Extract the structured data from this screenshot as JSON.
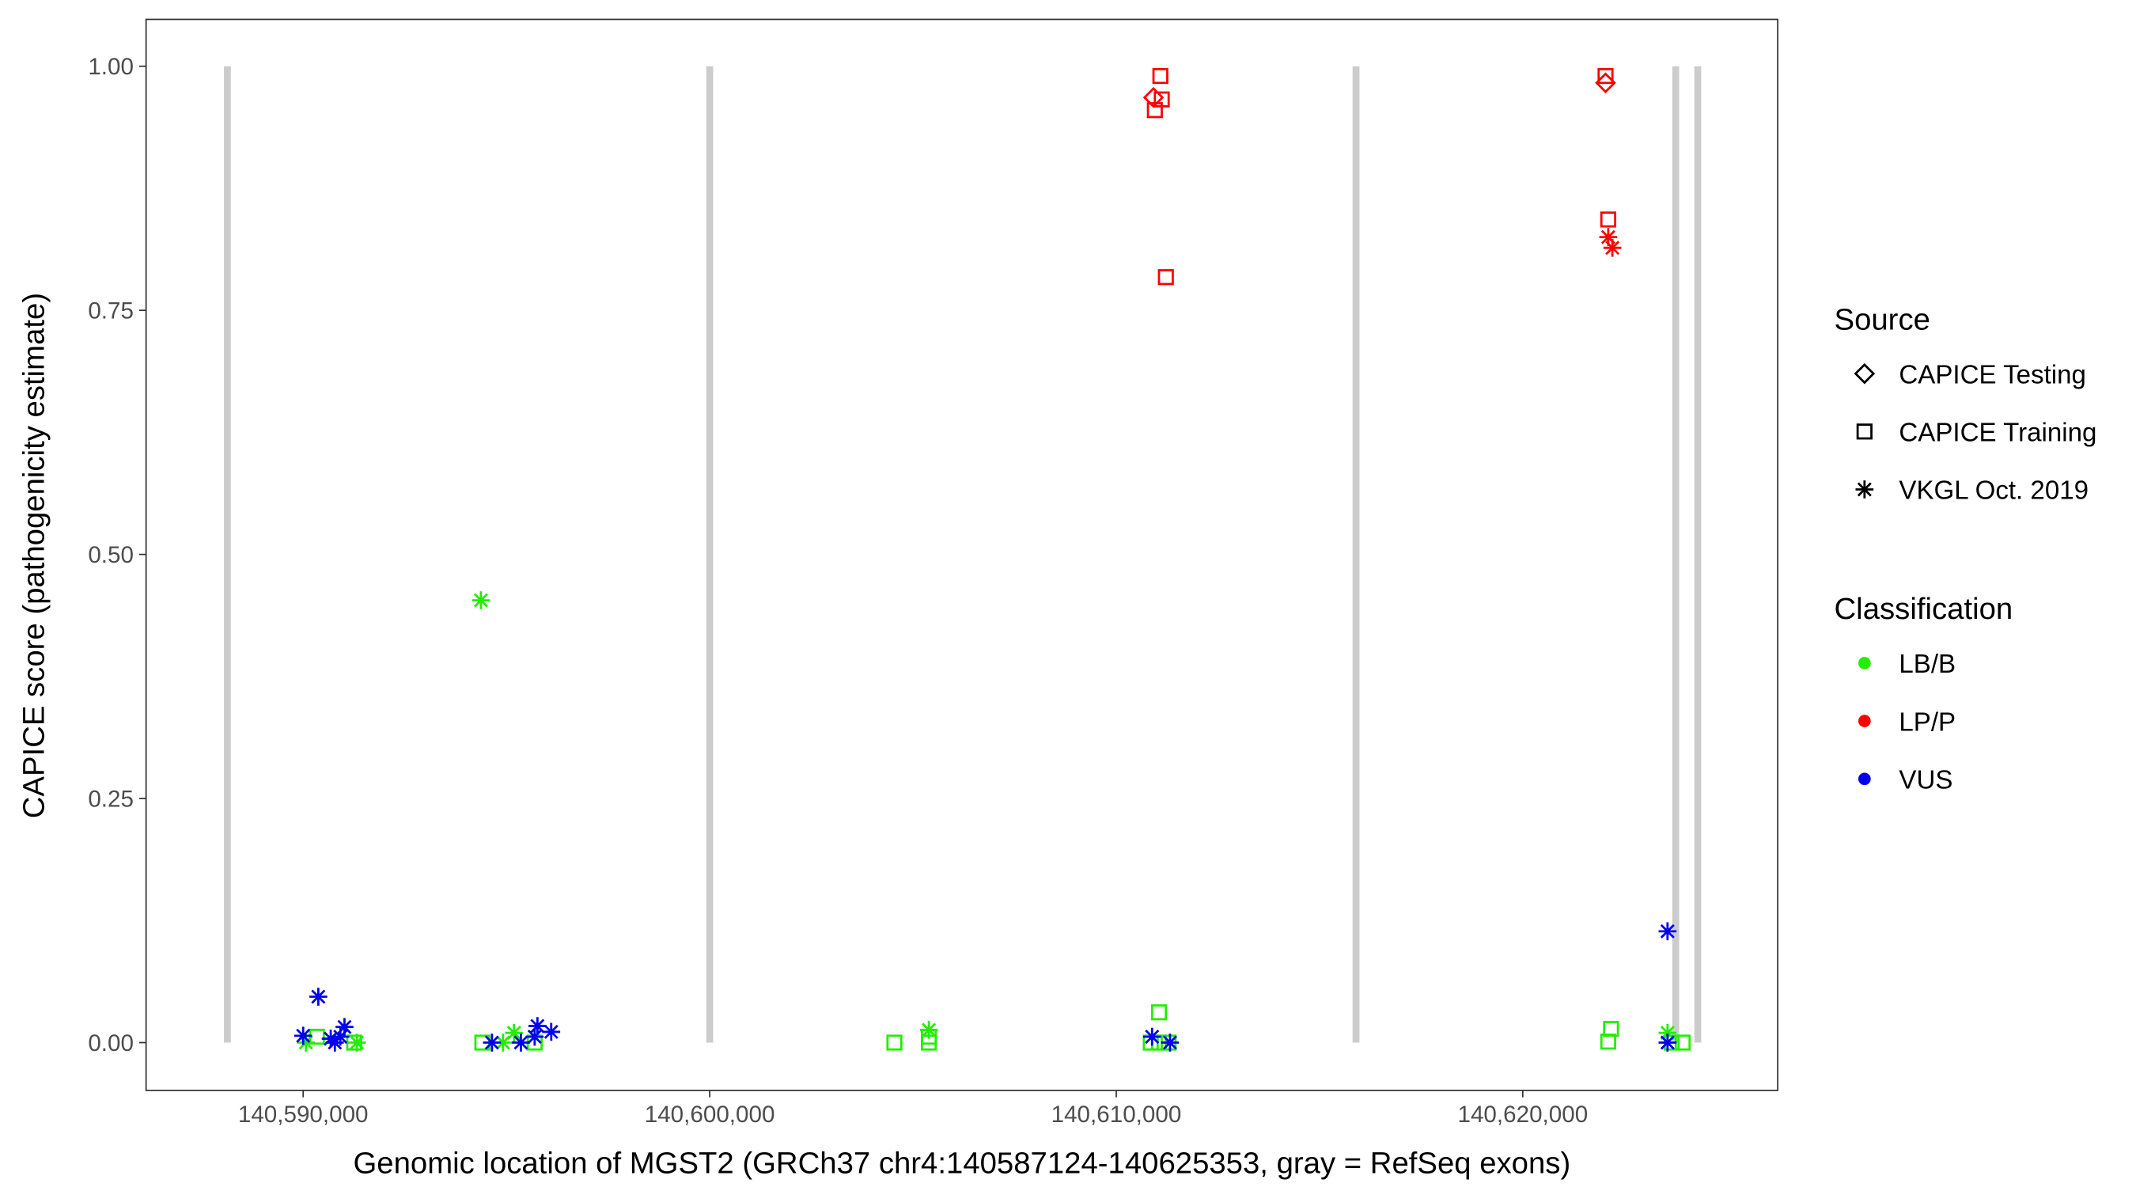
{
  "chart_data": {
    "type": "scatter",
    "title": "",
    "xlabel": "Genomic location of MGST2 (GRCh37 chr4:140587124-140625353, gray = RefSeq exons)",
    "ylabel": "CAPICE score (pathogenicity estimate)",
    "xlim": [
      140586136,
      140626271
    ],
    "ylim": [
      -0.049,
      1.048
    ],
    "x_ticks": [
      140590000,
      140600000,
      140610000,
      140620000
    ],
    "x_tick_labels": [
      "140,590,000",
      "140,600,000",
      "140,610,000",
      "140,620,000"
    ],
    "y_ticks": [
      0,
      0.25,
      0.5,
      0.75,
      1.0
    ],
    "y_tick_labels": [
      "0.00",
      "0.25",
      "0.50",
      "0.75",
      "1.00"
    ],
    "exons": [
      140588136,
      140600000,
      140615898,
      140623763,
      140624305
    ],
    "exon_color": "#cccccc",
    "legend_position": "right",
    "legend_source": {
      "title": "Source",
      "items": [
        {
          "label": "CAPICE Testing",
          "shape": "diamond"
        },
        {
          "label": "CAPICE Training",
          "shape": "square"
        },
        {
          "label": "VKGL Oct. 2019",
          "shape": "star"
        }
      ]
    },
    "legend_class": {
      "title": "Classification",
      "items": [
        {
          "label": "LB/B",
          "color": "#22ee00"
        },
        {
          "label": "LP/P",
          "color": "#ff0000"
        },
        {
          "label": "VUS",
          "color": "#0000ee"
        }
      ]
    },
    "points": [
      {
        "x": 140611086,
        "y": 0.99,
        "source": "square",
        "cls": "LP/P"
      },
      {
        "x": 140610916,
        "y": 0.968,
        "source": "diamond",
        "cls": "LP/P"
      },
      {
        "x": 140611120,
        "y": 0.966,
        "source": "square",
        "cls": "LP/P"
      },
      {
        "x": 140610950,
        "y": 0.955,
        "source": "square",
        "cls": "LP/P"
      },
      {
        "x": 140611221,
        "y": 0.784,
        "source": "square",
        "cls": "LP/P"
      },
      {
        "x": 140622036,
        "y": 0.99,
        "source": "square",
        "cls": "LP/P"
      },
      {
        "x": 140622036,
        "y": 0.983,
        "source": "diamond",
        "cls": "LP/P"
      },
      {
        "x": 140622103,
        "y": 0.843,
        "source": "square",
        "cls": "LP/P"
      },
      {
        "x": 140622103,
        "y": 0.825,
        "source": "star",
        "cls": "LP/P"
      },
      {
        "x": 140622205,
        "y": 0.814,
        "source": "star",
        "cls": "LP/P"
      },
      {
        "x": 140594373,
        "y": 0.453,
        "source": "star",
        "cls": "LB/B"
      },
      {
        "x": 140590068,
        "y": 0.0,
        "source": "star",
        "cls": "LB/B"
      },
      {
        "x": 140590339,
        "y": 0.006,
        "source": "square",
        "cls": "LB/B"
      },
      {
        "x": 140591322,
        "y": 0.0,
        "source": "star",
        "cls": "LB/B"
      },
      {
        "x": 140591254,
        "y": 0.0,
        "source": "square",
        "cls": "LB/B"
      },
      {
        "x": 140594407,
        "y": 0.0,
        "source": "square",
        "cls": "LB/B"
      },
      {
        "x": 140595187,
        "y": 0.01,
        "source": "star",
        "cls": "LB/B"
      },
      {
        "x": 140594916,
        "y": 0.0,
        "source": "star",
        "cls": "LB/B"
      },
      {
        "x": 140595695,
        "y": 0.0,
        "source": "square",
        "cls": "LB/B"
      },
      {
        "x": 140604543,
        "y": 0.0,
        "source": "square",
        "cls": "LB/B"
      },
      {
        "x": 140605391,
        "y": 0.013,
        "source": "star",
        "cls": "LB/B"
      },
      {
        "x": 140605391,
        "y": 0.0,
        "source": "square",
        "cls": "LB/B"
      },
      {
        "x": 140605391,
        "y": 0.006,
        "source": "square",
        "cls": "LB/B"
      },
      {
        "x": 140611052,
        "y": 0.031,
        "source": "square",
        "cls": "LB/B"
      },
      {
        "x": 140610849,
        "y": 0.0,
        "source": "square",
        "cls": "LB/B"
      },
      {
        "x": 140611052,
        "y": 0.0,
        "source": "square",
        "cls": "LB/B"
      },
      {
        "x": 140611289,
        "y": 0.0,
        "source": "square",
        "cls": "LB/B"
      },
      {
        "x": 140622171,
        "y": 0.014,
        "source": "square",
        "cls": "LB/B"
      },
      {
        "x": 140622103,
        "y": 0.001,
        "source": "square",
        "cls": "LB/B"
      },
      {
        "x": 140623561,
        "y": 0.01,
        "source": "star",
        "cls": "LB/B"
      },
      {
        "x": 140623663,
        "y": 0.0,
        "source": "square",
        "cls": "LB/B"
      },
      {
        "x": 140623934,
        "y": 0.0,
        "source": "square",
        "cls": "LB/B"
      },
      {
        "x": 140590373,
        "y": 0.047,
        "source": "star",
        "cls": "VUS"
      },
      {
        "x": 140590000,
        "y": 0.007,
        "source": "star",
        "cls": "VUS"
      },
      {
        "x": 140590780,
        "y": 0.0,
        "source": "star",
        "cls": "VUS"
      },
      {
        "x": 140590678,
        "y": 0.004,
        "source": "star",
        "cls": "VUS"
      },
      {
        "x": 140590915,
        "y": 0.006,
        "source": "star",
        "cls": "VUS"
      },
      {
        "x": 140591017,
        "y": 0.016,
        "source": "star",
        "cls": "VUS"
      },
      {
        "x": 140594644,
        "y": 0.0,
        "source": "star",
        "cls": "VUS"
      },
      {
        "x": 140595356,
        "y": 0.0,
        "source": "star",
        "cls": "VUS"
      },
      {
        "x": 140595763,
        "y": 0.017,
        "source": "star",
        "cls": "VUS"
      },
      {
        "x": 140595695,
        "y": 0.006,
        "source": "star",
        "cls": "VUS"
      },
      {
        "x": 140596102,
        "y": 0.011,
        "source": "star",
        "cls": "VUS"
      },
      {
        "x": 140610882,
        "y": 0.006,
        "source": "star",
        "cls": "VUS"
      },
      {
        "x": 140611323,
        "y": 0.0,
        "source": "star",
        "cls": "VUS"
      },
      {
        "x": 140623561,
        "y": 0.114,
        "source": "star",
        "cls": "VUS"
      },
      {
        "x": 140623561,
        "y": 0.0,
        "source": "star",
        "cls": "VUS"
      }
    ]
  }
}
